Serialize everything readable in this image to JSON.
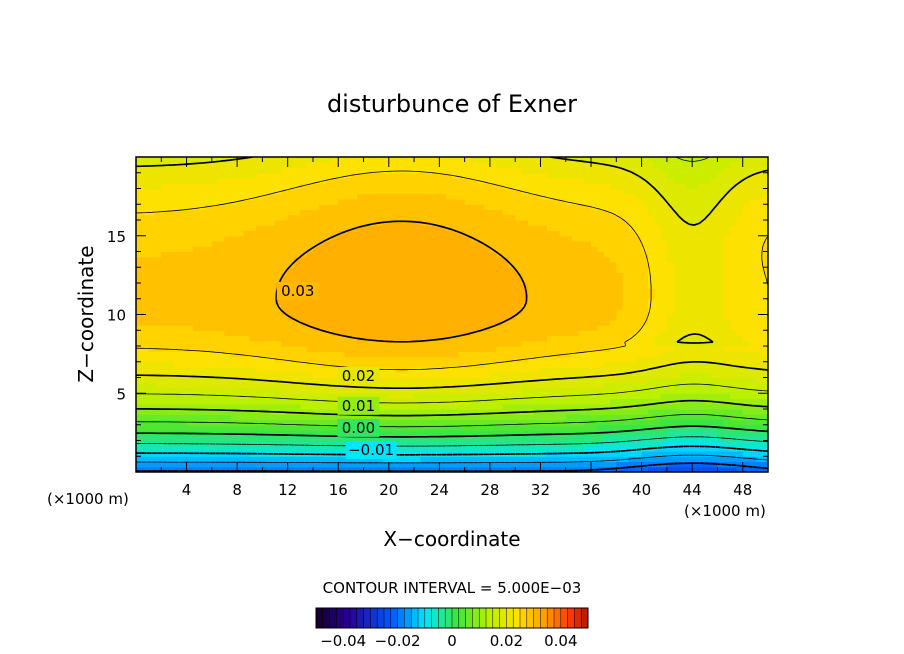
{
  "chart_data": {
    "type": "heatmap",
    "title": "disturbunce of Exner",
    "xlabel": "X−coordinate",
    "ylabel": "Z−coordinate",
    "x_unit_left": "(×1000 m)",
    "x_unit_right": "(×1000 m)",
    "xlim": [
      0,
      50
    ],
    "ylim": [
      0,
      20
    ],
    "x_ticks": [
      4,
      8,
      12,
      16,
      20,
      24,
      28,
      32,
      36,
      40,
      44,
      48
    ],
    "x_tick_labels": [
      "4",
      "8",
      "12",
      "16",
      "20",
      "24",
      "28",
      "32",
      "36",
      "40",
      "44",
      "48"
    ],
    "y_ticks": [
      5,
      10,
      15
    ],
    "y_tick_labels": [
      "5",
      "10",
      "15"
    ],
    "contour_interval_text": "CONTOUR INTERVAL = 5.000E−03",
    "contour_labels": [
      {
        "text": "0.03",
        "x": 12.8,
        "z": 11.5,
        "value": 0.03
      },
      {
        "text": "0.02",
        "x": 17.6,
        "z": 6.1,
        "value": 0.02
      },
      {
        "text": "0.01",
        "x": 17.6,
        "z": 4.2,
        "value": 0.01
      },
      {
        "text": "0.00",
        "x": 17.6,
        "z": 2.8,
        "value": 0.0
      },
      {
        "text": "−0.01",
        "x": 18.6,
        "z": 1.4,
        "value": -0.01
      }
    ],
    "field": {
      "description": "Exner pressure perturbation, max ~0.033 near x=20-24, z=11; decreases toward surface to ~ -0.02",
      "max": 0.033,
      "min": -0.02,
      "core_center_x": 21,
      "core_center_z": 11
    },
    "colorbar": {
      "range": [
        -0.05,
        0.05
      ],
      "tick_values": [
        -0.04,
        -0.02,
        0,
        0.02,
        0.04
      ],
      "tick_labels": [
        "−0.04",
        "−0.02",
        "0",
        "0.02",
        "0.04"
      ]
    }
  }
}
